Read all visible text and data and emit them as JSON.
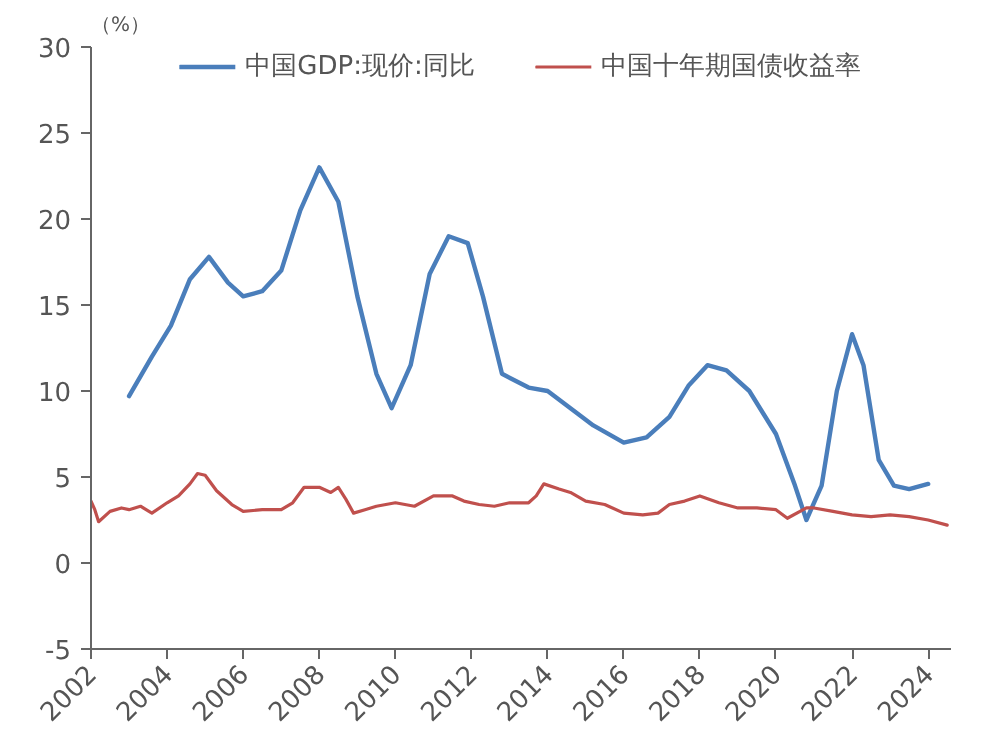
{
  "chart_data": {
    "type": "line",
    "annotations": [
      "（%）"
    ],
    "xlim": [
      2002,
      2024.6
    ],
    "xticks": [
      2002,
      2004,
      2006,
      2008,
      2010,
      2012,
      2014,
      2016,
      2018,
      2020,
      2022,
      2024
    ],
    "ylim": [
      -5,
      30
    ],
    "yticks": [
      -5,
      0,
      5,
      10,
      15,
      20,
      25,
      30
    ],
    "grid": false,
    "legend": "top",
    "marker": "none",
    "line_style": "solid",
    "series": [
      {
        "name": "中国GDP:现价:同比",
        "color": "#4a7ebb",
        "x": [
          2003.0,
          2003.6,
          2004.1,
          2004.6,
          2005.1,
          2005.6,
          2006.0,
          2006.5,
          2007.0,
          2007.5,
          2008.0,
          2008.5,
          2009.0,
          2009.5,
          2009.9,
          2010.4,
          2010.9,
          2011.4,
          2011.9,
          2012.3,
          2012.8,
          2013.5,
          2014.0,
          2014.6,
          2015.2,
          2016.0,
          2016.6,
          2017.2,
          2017.7,
          2018.2,
          2018.7,
          2019.3,
          2020.0,
          2020.5,
          2020.8,
          2021.2,
          2021.6,
          2022.0,
          2022.3,
          2022.7,
          2023.1,
          2023.5,
          2024.0
        ],
        "values": [
          9.7,
          12.0,
          13.8,
          16.5,
          17.8,
          16.3,
          15.5,
          15.8,
          17.0,
          20.5,
          23.0,
          21.0,
          15.5,
          11.0,
          9.0,
          11.5,
          16.8,
          19.0,
          18.6,
          15.5,
          11.0,
          10.2,
          10.0,
          9.0,
          8.0,
          7.0,
          7.3,
          8.5,
          10.3,
          11.5,
          11.2,
          10.0,
          7.5,
          4.5,
          2.5,
          4.5,
          10.0,
          13.3,
          11.5,
          6.0,
          4.5,
          4.3,
          4.6
        ]
      },
      {
        "name": "中国十年期国债收益率",
        "color": "#c0504d",
        "x": [
          2002.0,
          2002.1,
          2002.2,
          2002.5,
          2002.8,
          2003.0,
          2003.3,
          2003.6,
          2004.0,
          2004.3,
          2004.6,
          2004.8,
          2005.0,
          2005.3,
          2005.7,
          2006.0,
          2006.5,
          2007.0,
          2007.3,
          2007.6,
          2008.0,
          2008.3,
          2008.5,
          2008.7,
          2008.9,
          2009.2,
          2009.5,
          2010.0,
          2010.5,
          2011.0,
          2011.5,
          2011.8,
          2012.2,
          2012.6,
          2013.0,
          2013.5,
          2013.7,
          2013.9,
          2014.3,
          2014.6,
          2015.0,
          2015.5,
          2016.0,
          2016.5,
          2016.9,
          2017.2,
          2017.6,
          2018.0,
          2018.5,
          2019.0,
          2019.5,
          2020.0,
          2020.3,
          2020.8,
          2021.0,
          2021.5,
          2022.0,
          2022.5,
          2023.0,
          2023.5,
          2024.0,
          2024.5
        ],
        "values": [
          3.6,
          3.1,
          2.4,
          3.0,
          3.2,
          3.1,
          3.3,
          2.9,
          3.5,
          3.9,
          4.6,
          5.2,
          5.1,
          4.2,
          3.4,
          3.0,
          3.1,
          3.1,
          3.5,
          4.4,
          4.4,
          4.1,
          4.4,
          3.7,
          2.9,
          3.1,
          3.3,
          3.5,
          3.3,
          3.9,
          3.9,
          3.6,
          3.4,
          3.3,
          3.5,
          3.5,
          3.9,
          4.6,
          4.3,
          4.1,
          3.6,
          3.4,
          2.9,
          2.8,
          2.9,
          3.4,
          3.6,
          3.9,
          3.5,
          3.2,
          3.2,
          3.1,
          2.6,
          3.2,
          3.2,
          3.0,
          2.8,
          2.7,
          2.8,
          2.7,
          2.5,
          2.2
        ]
      }
    ]
  }
}
